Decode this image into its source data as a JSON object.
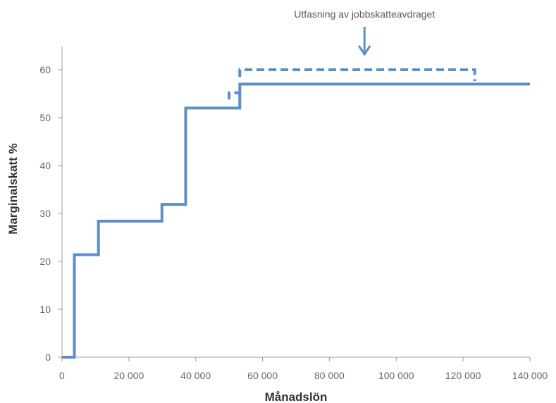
{
  "chart_data": {
    "type": "line",
    "xlabel": "Månadslön",
    "ylabel": "Marginalskatt %",
    "xlim": [
      0,
      140000
    ],
    "ylim": [
      0,
      60
    ],
    "x_ticks": [
      {
        "value": 0,
        "label": "0"
      },
      {
        "value": 20000,
        "label": "20 000"
      },
      {
        "value": 40000,
        "label": "40 000"
      },
      {
        "value": 60000,
        "label": "60 000"
      },
      {
        "value": 80000,
        "label": "80 000"
      },
      {
        "value": 100000,
        "label": "100 000"
      },
      {
        "value": 120000,
        "label": "120 000"
      },
      {
        "value": 140000,
        "label": "140 000"
      }
    ],
    "y_ticks": [
      {
        "value": 0,
        "label": "0"
      },
      {
        "value": 10,
        "label": "10"
      },
      {
        "value": 20,
        "label": "20"
      },
      {
        "value": 30,
        "label": "30"
      },
      {
        "value": 40,
        "label": "40"
      },
      {
        "value": 50,
        "label": "50"
      },
      {
        "value": 60,
        "label": "60"
      }
    ],
    "grid": false,
    "color": "#5b8fc7",
    "series": [
      {
        "style": "solid",
        "points": [
          [
            0,
            0
          ],
          [
            3700,
            0
          ],
          [
            3700,
            21.4
          ],
          [
            10900,
            21.4
          ],
          [
            10900,
            28.4
          ],
          [
            29900,
            28.4
          ],
          [
            29900,
            31.9
          ],
          [
            37000,
            31.9
          ],
          [
            37000,
            52
          ],
          [
            53200,
            52
          ],
          [
            53200,
            57
          ],
          [
            140000,
            57
          ]
        ]
      },
      {
        "style": "dashed",
        "segments": [
          [
            [
              50000,
              53.8
            ],
            [
              50000,
              55.2
            ],
            [
              53000,
              55.2
            ]
          ],
          [
            [
              53200,
              58.5
            ],
            [
              53200,
              60
            ],
            [
              123500,
              60
            ],
            [
              123500,
              57.6
            ]
          ]
        ]
      }
    ],
    "annotations": [
      {
        "text": "Utfasning av jobbskatteavdraget",
        "x": 90500,
        "y": 60
      }
    ]
  }
}
